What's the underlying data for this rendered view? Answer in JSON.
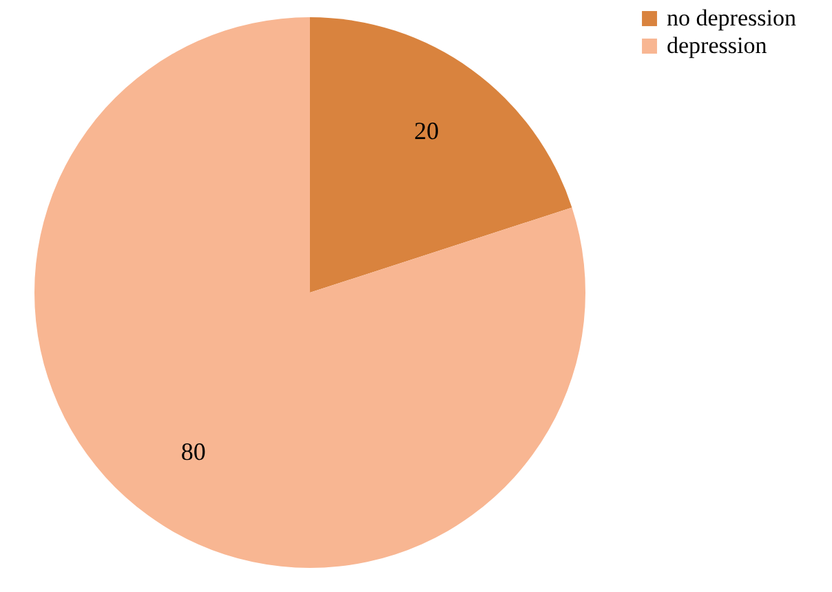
{
  "chart_data": {
    "type": "pie",
    "categories": [
      "no depression",
      "depression"
    ],
    "values": [
      20,
      80
    ],
    "colors": [
      "#d9833e",
      "#f8b692"
    ],
    "data_labels": true,
    "legend": "right"
  }
}
